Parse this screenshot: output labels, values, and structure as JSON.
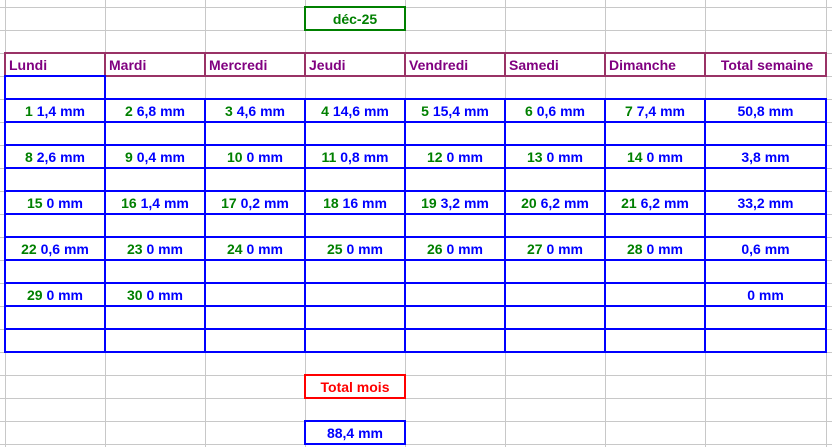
{
  "month_title": "déc-25",
  "headers": [
    "Lundi",
    "Mardi",
    "Mercredi",
    "Jeudi",
    "Vendredi",
    "Samedi",
    "Dimanche",
    "Total semaine"
  ],
  "weeks": [
    {
      "days": [
        [
          "1",
          "1,4 mm"
        ],
        [
          "2",
          "6,8 mm"
        ],
        [
          "3",
          "4,6 mm"
        ],
        [
          "4",
          "14,6 mm"
        ],
        [
          "5",
          "15,4 mm"
        ],
        [
          "6",
          "0,6 mm"
        ],
        [
          "7",
          "7,4 mm"
        ]
      ],
      "total": "50,8 mm"
    },
    {
      "days": [
        [
          "8",
          "2,6 mm"
        ],
        [
          "9",
          "0,4 mm"
        ],
        [
          "10",
          "0 mm"
        ],
        [
          "11",
          "0,8 mm"
        ],
        [
          "12",
          "0 mm"
        ],
        [
          "13",
          "0 mm"
        ],
        [
          "14",
          "0 mm"
        ]
      ],
      "total": "3,8 mm"
    },
    {
      "days": [
        [
          "15",
          "0 mm"
        ],
        [
          "16",
          "1,4 mm"
        ],
        [
          "17",
          "0,2 mm"
        ],
        [
          "18",
          "16 mm"
        ],
        [
          "19",
          "3,2 mm"
        ],
        [
          "20",
          "6,2 mm"
        ],
        [
          "21",
          "6,2 mm"
        ]
      ],
      "total": "33,2 mm"
    },
    {
      "days": [
        [
          "22",
          "0,6 mm"
        ],
        [
          "23",
          "0 mm"
        ],
        [
          "24",
          "0 mm"
        ],
        [
          "25",
          "0 mm"
        ],
        [
          "26",
          "0 mm"
        ],
        [
          "27",
          "0 mm"
        ],
        [
          "28",
          "0 mm"
        ]
      ],
      "total": "0,6 mm"
    },
    {
      "days": [
        [
          "29",
          "0 mm"
        ],
        [
          "30",
          "0 mm"
        ],
        null,
        null,
        null,
        null,
        null
      ],
      "total": "0 mm"
    }
  ],
  "total_month_label": "Total mois",
  "total_month_value": "88,4 mm",
  "colors": {
    "day": "#008000",
    "value": "#0000ff",
    "header": "#800080",
    "header_border": "#993366",
    "title_border": "#008000",
    "total_border": "#ff0000"
  }
}
